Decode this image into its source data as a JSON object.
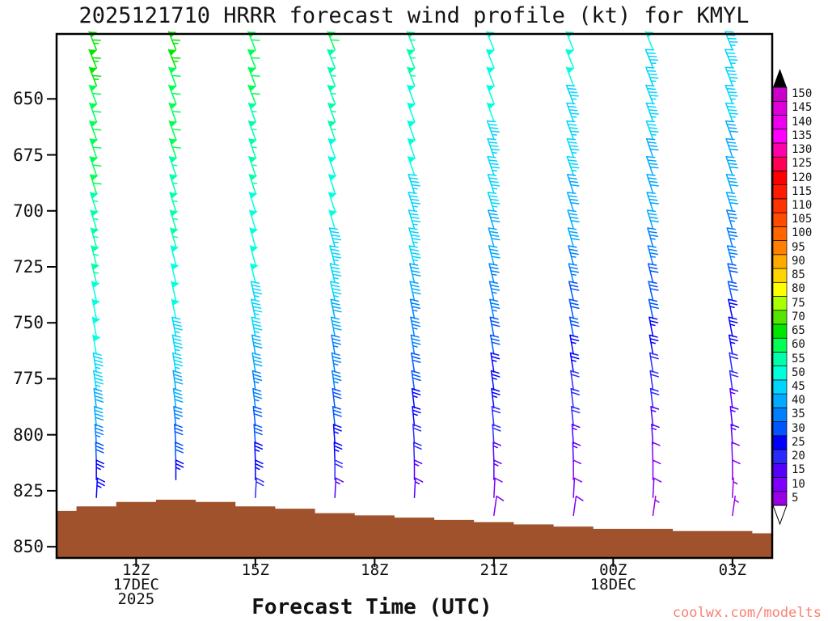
{
  "title": "2025121710 HRRR forecast wind profile (kt) for KMYL",
  "xaxis_title": "Forecast Time (UTC)",
  "watermark": "coolwx.com/modelts",
  "x_ticks": [
    {
      "hour": 12,
      "label": "12Z"
    },
    {
      "hour": 15,
      "label": "15Z"
    },
    {
      "hour": 18,
      "label": "18Z"
    },
    {
      "hour": 21,
      "label": "21Z"
    },
    {
      "hour": 24,
      "label": "00Z"
    },
    {
      "hour": 27,
      "label": "03Z"
    }
  ],
  "sub_labels": [
    {
      "hour": 12,
      "row": 0,
      "text": "17DEC"
    },
    {
      "hour": 12,
      "row": 1,
      "text": "2025"
    },
    {
      "hour": 24,
      "row": 0,
      "text": "18DEC"
    }
  ],
  "chart_data": {
    "type": "wind-barb-profile",
    "title": "2025121710 HRRR forecast wind profile (kt) for KMYL",
    "units": "kt",
    "xlabel": "Forecast Time (UTC)",
    "ylabel": "",
    "x_axis": {
      "hour_range": [
        10,
        28
      ],
      "tick_hours": [
        12,
        15,
        18,
        21,
        24,
        27
      ],
      "tick_labels": [
        "12Z",
        "15Z",
        "18Z",
        "21Z",
        "00Z",
        "03Z"
      ]
    },
    "y_axis": {
      "range": [
        621,
        855
      ],
      "inverted": true,
      "ticks": [
        650,
        675,
        700,
        725,
        750,
        775,
        800,
        825,
        850
      ]
    },
    "pressures": [
      628,
      636,
      644,
      652,
      660,
      668,
      676,
      684,
      692,
      700,
      708,
      716,
      724,
      732,
      740,
      748,
      756,
      764,
      772,
      780,
      788,
      796,
      804,
      812,
      820,
      828,
      836
    ],
    "dirs": [
      338,
      338,
      339,
      339,
      340,
      340,
      341,
      341,
      342,
      342,
      343,
      344,
      345,
      346,
      347,
      348,
      349,
      350,
      351,
      352,
      353,
      354,
      356,
      358,
      360,
      3,
      8
    ],
    "columns": [
      {
        "time": "11Z",
        "hour": 11,
        "n_levels": 26,
        "speeds": [
          66,
          64,
          63,
          62,
          61,
          60,
          59,
          58,
          58,
          57,
          56,
          55,
          54,
          53,
          52,
          51,
          50,
          48,
          46,
          44,
          42,
          38,
          34,
          30,
          26,
          24,
          22
        ]
      },
      {
        "time": "13Z",
        "hour": 13,
        "n_levels": 25,
        "speeds": [
          64,
          63,
          62,
          61,
          60,
          59,
          58,
          57,
          56,
          55,
          54,
          53,
          52,
          51,
          50,
          49,
          47,
          45,
          43,
          41,
          39,
          36,
          32,
          28,
          25,
          23,
          21
        ]
      },
      {
        "time": "15Z",
        "hour": 15,
        "n_levels": 26,
        "speeds": [
          61,
          60,
          59,
          58,
          57,
          56,
          55,
          54,
          53,
          52,
          51,
          50,
          49,
          48,
          47,
          45,
          43,
          41,
          39,
          37,
          35,
          32,
          29,
          26,
          23,
          20,
          18
        ]
      },
      {
        "time": "17Z",
        "hour": 17,
        "n_levels": 26,
        "speeds": [
          58,
          57,
          56,
          55,
          54,
          53,
          52,
          51,
          50,
          49,
          48,
          47,
          46,
          45,
          43,
          41,
          39,
          37,
          35,
          33,
          31,
          29,
          26,
          23,
          20,
          17,
          15
        ]
      },
      {
        "time": "19Z",
        "hour": 19,
        "n_levels": 26,
        "speeds": [
          55,
          54,
          53,
          52,
          51,
          50,
          49,
          48,
          47,
          46,
          45,
          44,
          43,
          41,
          39,
          37,
          35,
          33,
          31,
          29,
          27,
          25,
          22,
          19,
          16,
          14,
          12
        ]
      },
      {
        "time": "21Z",
        "hour": 21,
        "n_levels": 27,
        "speeds": [
          52,
          51,
          50,
          49,
          48,
          47,
          46,
          45,
          44,
          43,
          42,
          41,
          39,
          37,
          35,
          33,
          31,
          29,
          27,
          25,
          23,
          21,
          19,
          16,
          13,
          11,
          10
        ]
      },
      {
        "time": "23Z",
        "hour": 23,
        "n_levels": 27,
        "speeds": [
          50,
          49,
          48,
          47,
          46,
          45,
          44,
          43,
          42,
          41,
          40,
          38,
          36,
          34,
          32,
          30,
          28,
          26,
          24,
          22,
          20,
          18,
          16,
          14,
          11,
          9,
          8
        ]
      },
      {
        "time": "01Z",
        "hour": 25,
        "n_levels": 27,
        "speeds": [
          48,
          47,
          46,
          45,
          44,
          43,
          42,
          41,
          40,
          39,
          38,
          36,
          34,
          32,
          30,
          28,
          26,
          24,
          22,
          20,
          18,
          16,
          14,
          12,
          10,
          8,
          6
        ]
      },
      {
        "time": "03Z",
        "hour": 27,
        "n_levels": 27,
        "speeds": [
          46,
          45,
          44,
          44,
          43,
          42,
          41,
          40,
          39,
          38,
          37,
          35,
          33,
          31,
          29,
          27,
          25,
          23,
          21,
          19,
          17,
          15,
          13,
          11,
          9,
          7,
          5
        ]
      }
    ],
    "terrain": {
      "start_hour": 10,
      "step_hours": 1,
      "color": "#a0522d",
      "top_pressure": [
        834,
        832,
        830,
        829,
        830,
        832,
        833,
        835,
        836,
        837,
        838,
        839,
        840,
        841,
        842,
        842,
        843,
        843,
        844
      ]
    },
    "speed_colors": [
      {
        "v": 5,
        "c": "#9900e6"
      },
      {
        "v": 10,
        "c": "#7f00ff"
      },
      {
        "v": 15,
        "c": "#5500ff"
      },
      {
        "v": 20,
        "c": "#2a2aff"
      },
      {
        "v": 25,
        "c": "#0000ff"
      },
      {
        "v": 30,
        "c": "#0055ff"
      },
      {
        "v": 35,
        "c": "#0080ff"
      },
      {
        "v": 40,
        "c": "#00aaff"
      },
      {
        "v": 45,
        "c": "#00d5ff"
      },
      {
        "v": 50,
        "c": "#00ffdd"
      },
      {
        "v": 55,
        "c": "#00ffaa"
      },
      {
        "v": 60,
        "c": "#00ff55"
      },
      {
        "v": 65,
        "c": "#00e600"
      },
      {
        "v": 70,
        "c": "#55e600"
      },
      {
        "v": 75,
        "c": "#aaff00"
      },
      {
        "v": 80,
        "c": "#ffff00"
      },
      {
        "v": 85,
        "c": "#ffd500"
      },
      {
        "v": 90,
        "c": "#ffaa00"
      },
      {
        "v": 95,
        "c": "#ff8000"
      },
      {
        "v": 100,
        "c": "#ff6600"
      },
      {
        "v": 105,
        "c": "#ff4c00"
      },
      {
        "v": 110,
        "c": "#ff3300"
      },
      {
        "v": 115,
        "c": "#ff1a00"
      },
      {
        "v": 120,
        "c": "#ff0000"
      },
      {
        "v": 125,
        "c": "#ff0055"
      },
      {
        "v": 130,
        "c": "#ff00aa"
      },
      {
        "v": 135,
        "c": "#ff00ff"
      },
      {
        "v": 140,
        "c": "#ee00ee"
      },
      {
        "v": 145,
        "c": "#dd00dd"
      },
      {
        "v": 150,
        "c": "#cc00cc"
      }
    ]
  }
}
